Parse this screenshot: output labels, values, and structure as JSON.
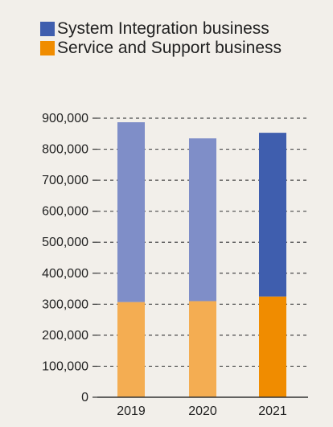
{
  "chart_data": {
    "type": "bar",
    "stacked": true,
    "categories": [
      "2019",
      "2020",
      "2021"
    ],
    "series": [
      {
        "name": "Service and Support business",
        "values": [
          307000,
          310000,
          325000
        ],
        "color": "#f08c00",
        "muted_color": "#f4ad52"
      },
      {
        "name": "System Integration business",
        "values": [
          580000,
          525000,
          528000
        ],
        "color": "#3f5eae",
        "muted_color": "#7f8ec8"
      }
    ],
    "highlight_category": "2021",
    "yticks": [
      "0",
      "100,000",
      "200,000",
      "300,000",
      "400,000",
      "500,000",
      "600,000",
      "700,000",
      "800,000",
      "900,000"
    ],
    "ylim": [
      0,
      900000
    ],
    "title": "",
    "xlabel": "",
    "ylabel": "",
    "grid": true,
    "legend_position": "top-left",
    "background": "#f2efea"
  }
}
